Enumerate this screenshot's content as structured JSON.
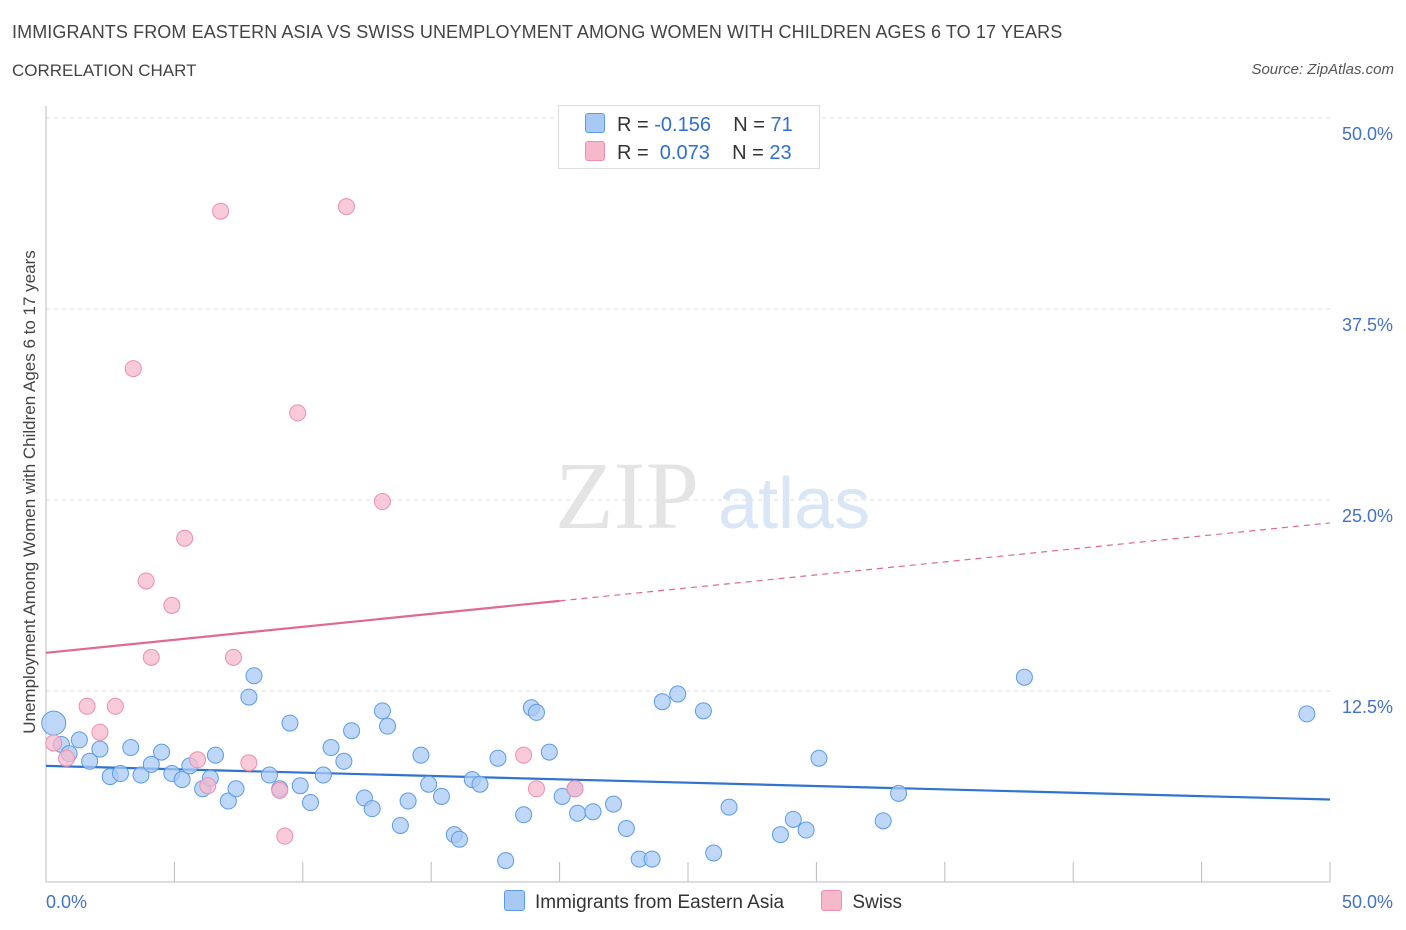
{
  "title": "IMMIGRANTS FROM EASTERN ASIA VS SWISS UNEMPLOYMENT AMONG WOMEN WITH CHILDREN AGES 6 TO 17 YEARS",
  "subtitle": "CORRELATION CHART",
  "source": "Source: ZipAtlas.com",
  "watermark": {
    "zip": "ZIP",
    "atlas": "atlas"
  },
  "legend": {
    "rows": [
      {
        "r_label": "R =",
        "r_value": "-0.156",
        "n_label": "N =",
        "n_value": "71",
        "color": "#a9c9f5"
      },
      {
        "r_label": "R =",
        "r_value": " 0.073",
        "n_label": "N =",
        "n_value": "23",
        "color": "#f7b8cc"
      }
    ]
  },
  "bottom_legend": [
    {
      "label": "Immigrants from Eastern Asia",
      "color": "#a9c9f5"
    },
    {
      "label": "Swiss",
      "color": "#f7b8cc"
    }
  ],
  "chart_data": {
    "type": "scatter",
    "title": "IMMIGRANTS FROM EASTERN ASIA VS SWISS UNEMPLOYMENT AMONG WOMEN WITH CHILDREN AGES 6 TO 17 YEARS",
    "xlabel": "",
    "ylabel": "Unemployment Among Women with Children Ages 6 to 17 years",
    "xlim": [
      0,
      50
    ],
    "ylim": [
      0,
      50
    ],
    "x_tick_labels": [
      "0.0%",
      "50.0%"
    ],
    "y_tick_labels": [
      "12.5%",
      "25.0%",
      "37.5%",
      "50.0%"
    ],
    "y_ticks": [
      12.5,
      25,
      37.5,
      50
    ],
    "grid": true,
    "legend_position": "top-center",
    "series": [
      {
        "name": "Immigrants from Eastern Asia",
        "color": "#5b9be8",
        "fill": "#a9c9f5",
        "trend": {
          "x": [
            0,
            50
          ],
          "y": [
            7.6,
            5.4
          ],
          "color": "#2f74d0"
        },
        "points": [
          [
            0.3,
            10.4
          ],
          [
            0.6,
            9.0
          ],
          [
            0.9,
            8.4
          ],
          [
            1.3,
            9.3
          ],
          [
            1.7,
            7.9
          ],
          [
            2.1,
            8.7
          ],
          [
            2.5,
            6.9
          ],
          [
            2.9,
            7.1
          ],
          [
            3.3,
            8.8
          ],
          [
            3.7,
            7.0
          ],
          [
            4.1,
            7.7
          ],
          [
            4.5,
            8.5
          ],
          [
            4.9,
            7.1
          ],
          [
            5.3,
            6.7
          ],
          [
            5.6,
            7.6
          ],
          [
            6.1,
            6.1
          ],
          [
            6.4,
            6.8
          ],
          [
            6.6,
            8.3
          ],
          [
            7.1,
            5.3
          ],
          [
            7.4,
            6.1
          ],
          [
            7.9,
            12.1
          ],
          [
            8.1,
            13.5
          ],
          [
            8.7,
            7.0
          ],
          [
            9.1,
            6.1
          ],
          [
            9.5,
            10.4
          ],
          [
            9.9,
            6.3
          ],
          [
            10.3,
            5.2
          ],
          [
            10.8,
            7.0
          ],
          [
            11.1,
            8.8
          ],
          [
            11.6,
            7.9
          ],
          [
            11.9,
            9.9
          ],
          [
            12.4,
            5.5
          ],
          [
            12.7,
            4.8
          ],
          [
            13.1,
            11.2
          ],
          [
            13.3,
            10.2
          ],
          [
            13.8,
            3.7
          ],
          [
            14.1,
            5.3
          ],
          [
            14.6,
            8.3
          ],
          [
            14.9,
            6.4
          ],
          [
            15.4,
            5.6
          ],
          [
            15.9,
            3.1
          ],
          [
            16.1,
            2.8
          ],
          [
            16.6,
            6.7
          ],
          [
            16.9,
            6.4
          ],
          [
            17.6,
            8.1
          ],
          [
            17.9,
            1.4
          ],
          [
            18.6,
            4.4
          ],
          [
            18.9,
            11.4
          ],
          [
            19.1,
            11.1
          ],
          [
            19.6,
            8.5
          ],
          [
            20.1,
            5.6
          ],
          [
            20.6,
            6.1
          ],
          [
            20.7,
            4.5
          ],
          [
            21.3,
            4.6
          ],
          [
            22.1,
            5.1
          ],
          [
            22.6,
            3.5
          ],
          [
            23.1,
            1.5
          ],
          [
            23.6,
            1.5
          ],
          [
            24.0,
            11.8
          ],
          [
            24.6,
            12.3
          ],
          [
            25.6,
            11.2
          ],
          [
            26.0,
            1.9
          ],
          [
            26.6,
            4.9
          ],
          [
            28.6,
            3.1
          ],
          [
            29.1,
            4.1
          ],
          [
            29.6,
            3.4
          ],
          [
            30.1,
            8.1
          ],
          [
            32.6,
            4.0
          ],
          [
            33.2,
            5.8
          ],
          [
            38.1,
            13.4
          ],
          [
            49.1,
            11.0
          ]
        ]
      },
      {
        "name": "Swiss",
        "color": "#ec8fac",
        "fill": "#f7b8cc",
        "trend": {
          "x": [
            0,
            20
          ],
          "y": [
            15.0,
            18.4
          ],
          "color": "#e06a8e",
          "extended": {
            "x": [
              20,
              50
            ],
            "y": [
              18.4,
              23.5
            ]
          }
        },
        "points": [
          [
            0.3,
            9.1
          ],
          [
            0.8,
            8.1
          ],
          [
            1.6,
            11.5
          ],
          [
            2.1,
            9.8
          ],
          [
            2.7,
            11.5
          ],
          [
            3.4,
            33.6
          ],
          [
            3.9,
            19.7
          ],
          [
            4.1,
            14.7
          ],
          [
            4.9,
            18.1
          ],
          [
            5.4,
            22.5
          ],
          [
            5.9,
            8.0
          ],
          [
            6.3,
            6.3
          ],
          [
            6.8,
            43.9
          ],
          [
            7.3,
            14.7
          ],
          [
            7.9,
            7.8
          ],
          [
            9.1,
            6.0
          ],
          [
            9.3,
            3.0
          ],
          [
            9.8,
            30.7
          ],
          [
            11.7,
            44.2
          ],
          [
            13.1,
            24.9
          ],
          [
            18.6,
            8.3
          ],
          [
            19.1,
            6.1
          ],
          [
            20.6,
            6.1
          ]
        ]
      }
    ]
  }
}
